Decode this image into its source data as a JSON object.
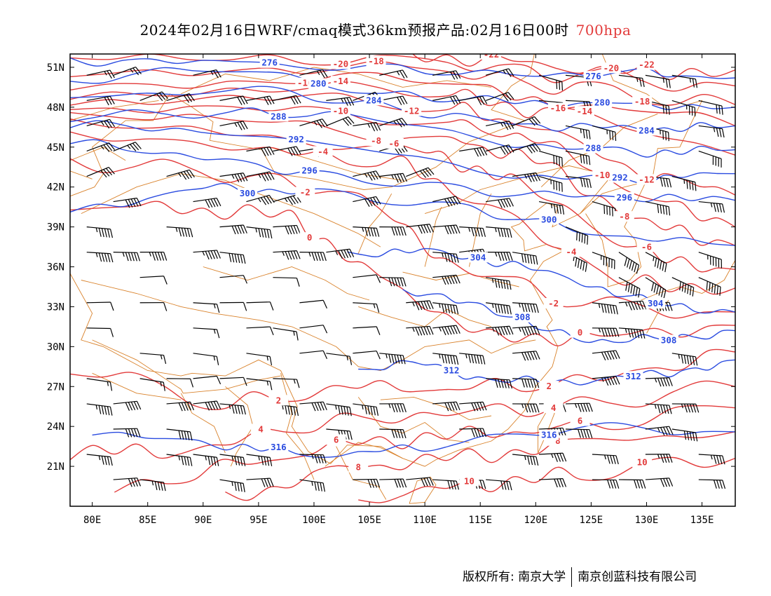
{
  "title": {
    "main": "2024年02月16日WRF/cmaq模式36km预报产品:02月16日00时",
    "level": "700hpa"
  },
  "footer": {
    "copyright": "版权所有: 南京大学",
    "company": "南京创蓝科技有限公司"
  },
  "colors": {
    "temperature": "#e23a3a",
    "height": "#2a4be0",
    "border": "#d9822b",
    "wind": "#000000"
  },
  "map": {
    "lon_range": [
      78,
      138
    ],
    "lat_range": [
      18,
      52
    ],
    "lat_ticks": [
      {
        "value": 51,
        "label": "51N"
      },
      {
        "value": 48,
        "label": "48N"
      },
      {
        "value": 45,
        "label": "45N"
      },
      {
        "value": 42,
        "label": "42N"
      },
      {
        "value": 39,
        "label": "39N"
      },
      {
        "value": 36,
        "label": "36N"
      },
      {
        "value": 33,
        "label": "33N"
      },
      {
        "value": 30,
        "label": "30N"
      },
      {
        "value": 27,
        "label": "27N"
      },
      {
        "value": 24,
        "label": "24N"
      },
      {
        "value": 21,
        "label": "21N"
      }
    ],
    "lon_ticks": [
      {
        "value": 80,
        "label": "80E"
      },
      {
        "value": 85,
        "label": "85E"
      },
      {
        "value": 90,
        "label": "90E"
      },
      {
        "value": 95,
        "label": "95E"
      },
      {
        "value": 100,
        "label": "100E"
      },
      {
        "value": 105,
        "label": "105E"
      },
      {
        "value": 110,
        "label": "110E"
      },
      {
        "value": 115,
        "label": "115E"
      },
      {
        "value": 120,
        "label": "120E"
      },
      {
        "value": 125,
        "label": "125E"
      },
      {
        "value": 130,
        "label": "130E"
      },
      {
        "value": 135,
        "label": "135E"
      }
    ],
    "height_contours": [
      {
        "label": "276",
        "lon": [
          78,
          90,
          105,
          118,
          130,
          138
        ],
        "lat": [
          51.5,
          51.4,
          51.0,
          50.4,
          50.6,
          50.2
        ]
      },
      {
        "label": "280",
        "lon": [
          78,
          92,
          106,
          118,
          128,
          138
        ],
        "lat": [
          50.0,
          51.0,
          49.0,
          48.4,
          48.2,
          48.0
        ]
      },
      {
        "label": "284",
        "lon": [
          78,
          95,
          108,
          120,
          130,
          138
        ],
        "lat": [
          49.0,
          49.4,
          47.8,
          46.6,
          46.4,
          46.6
        ]
      },
      {
        "label": "288",
        "lon": [
          78,
          92,
          104,
          118,
          130,
          138
        ],
        "lat": [
          47.3,
          47.6,
          47.4,
          45.2,
          44.6,
          44.8
        ]
      },
      {
        "label": "292",
        "lon": [
          78,
          90,
          104,
          118,
          130,
          138
        ],
        "lat": [
          46.8,
          46.2,
          45.0,
          42.8,
          42.6,
          43.0
        ]
      },
      {
        "label": "296",
        "lon": [
          78,
          90,
          102,
          116,
          128,
          138
        ],
        "lat": [
          45.4,
          44.2,
          42.8,
          41.6,
          41.2,
          41.0
        ]
      },
      {
        "label": "300",
        "lon": [
          78,
          90,
          100,
          114,
          126,
          138
        ],
        "lat": [
          40.0,
          42.0,
          41.6,
          40.4,
          38.4,
          37.6
        ]
      },
      {
        "label": "304",
        "lon": [
          103,
          110,
          118,
          126,
          132,
          138
        ],
        "lat": [
          37.0,
          37.2,
          36.2,
          34.4,
          33.0,
          32.6
        ]
      },
      {
        "label": "308",
        "lon": [
          108,
          114,
          120,
          126,
          132,
          138
        ],
        "lat": [
          34.0,
          33.5,
          31.4,
          30.4,
          30.6,
          31.2
        ]
      },
      {
        "label": "312",
        "lon": [
          104,
          110,
          116,
          124,
          132,
          138
        ],
        "lat": [
          28.2,
          28.8,
          27.4,
          27.4,
          28.0,
          29.0
        ]
      },
      {
        "label": "316",
        "lon": [
          80,
          92,
          100,
          110,
          124,
          138
        ],
        "lat": [
          23.6,
          22.6,
          21.8,
          22.4,
          24.0,
          23.6
        ]
      }
    ],
    "temp_contours": [
      {
        "label": "-22",
        "lon": [
          108,
          118,
          128,
          138
        ],
        "lat": [
          52.0,
          51.4,
          50.6,
          50.8
        ]
      },
      {
        "label": "-20",
        "lon": [
          78,
          96,
          112,
          124,
          138
        ],
        "lat": [
          51.8,
          52.0,
          51.2,
          50.4,
          49.6
        ]
      },
      {
        "label": "-18",
        "lon": [
          78,
          96,
          112,
          124,
          138
        ],
        "lat": [
          50.8,
          51.2,
          50.6,
          49.4,
          48.2
        ]
      },
      {
        "label": "-16",
        "lon": [
          78,
          96,
          112,
          122,
          138
        ],
        "lat": [
          50.0,
          50.2,
          49.8,
          48.4,
          46.6
        ]
      },
      {
        "label": "-14",
        "lon": [
          78,
          96,
          112,
          121,
          138
        ],
        "lat": [
          49.2,
          49.4,
          49.0,
          47.6,
          44.4
        ]
      },
      {
        "label": "-12",
        "lon": [
          78,
          96,
          112,
          120,
          130,
          138
        ],
        "lat": [
          48.4,
          48.6,
          48.0,
          46.6,
          43.0,
          41.4
        ]
      },
      {
        "label": "-10",
        "lon": [
          78,
          96,
          112,
          120,
          130,
          138
        ],
        "lat": [
          47.6,
          47.6,
          47.0,
          45.6,
          41.2,
          39.0
        ]
      },
      {
        "label": "-8",
        "lon": [
          78,
          96,
          112,
          120,
          130,
          138
        ],
        "lat": [
          47.0,
          46.6,
          45.8,
          44.0,
          39.2,
          37.6
        ]
      },
      {
        "label": "-6",
        "lon": [
          78,
          96,
          110,
          118,
          130,
          138
        ],
        "lat": [
          46.4,
          45.6,
          44.6,
          42.6,
          36.8,
          35.8
        ]
      },
      {
        "label": "-4",
        "lon": [
          78,
          96,
          108,
          116,
          128,
          138
        ],
        "lat": [
          45.6,
          44.8,
          43.6,
          40.4,
          34.8,
          34.4
        ]
      },
      {
        "label": "-2",
        "lon": [
          78,
          92,
          104,
          112,
          124,
          138
        ],
        "lat": [
          44.0,
          43.0,
          41.4,
          36.4,
          33.2,
          32.6
        ]
      },
      {
        "label": "0",
        "lon": [
          78,
          88,
          98,
          106,
          116,
          126,
          138
        ],
        "lat": [
          40.6,
          40.4,
          39.8,
          35.0,
          30.6,
          30.8,
          31.6
        ]
      },
      {
        "label": "2",
        "lon": [
          78,
          92,
          104,
          114,
          126,
          138
        ],
        "lat": [
          28.6,
          25.6,
          27.0,
          26.8,
          27.6,
          29.6
        ]
      },
      {
        "label": "4",
        "lon": [
          78,
          88,
          100,
          112,
          124,
          138
        ],
        "lat": [
          22.2,
          22.0,
          24.2,
          25.0,
          25.6,
          27.0
        ]
      },
      {
        "label": "6",
        "lon": [
          82,
          94,
          104,
          114,
          124,
          138
        ],
        "lat": [
          19.2,
          21.2,
          22.8,
          23.4,
          24.0,
          25.4
        ]
      },
      {
        "label": "8",
        "lon": [
          92,
          102,
          112,
          122,
          138
        ],
        "lat": [
          18.4,
          20.8,
          21.6,
          22.4,
          23.6
        ]
      },
      {
        "label": "10",
        "lon": [
          104,
          114,
          124,
          138
        ],
        "lat": [
          18.4,
          19.6,
          20.4,
          21.6
        ]
      }
    ],
    "wind_barbs_note": "wind barbs (knots) at grid points"
  }
}
